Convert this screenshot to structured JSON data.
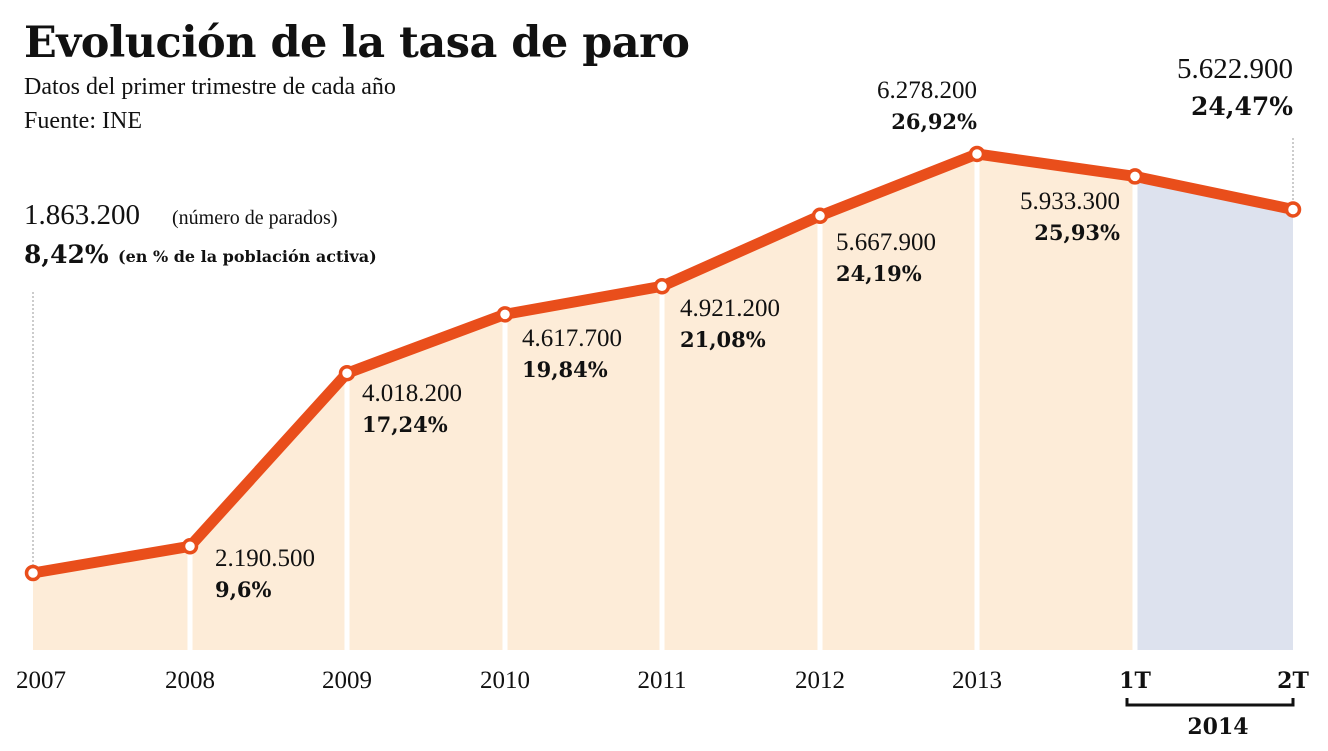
{
  "title": "Evolución de la tasa de paro",
  "subtitle": "Datos del primer trimestre de cada año",
  "source": "Fuente: INE",
  "chart_data": {
    "type": "area",
    "title": "Evolución de la tasa de paro",
    "categories": [
      "2007",
      "2008",
      "2009",
      "2010",
      "2011",
      "2012",
      "2013",
      "1T",
      "2T"
    ],
    "group_label": "2014",
    "group_categories": [
      "1T",
      "2T"
    ],
    "series": [
      {
        "values": [
          8.42,
          9.6,
          17.24,
          19.84,
          21.08,
          24.19,
          26.92,
          25.93,
          24.47
        ],
        "labels": [
          "8,42%",
          "9,6%",
          "17,24%",
          "19,84%",
          "21,08%",
          "24,19%",
          "26,92%",
          "25,93%",
          "24,47%"
        ]
      },
      {
        "values": [
          1863200,
          2190500,
          4018200,
          4617700,
          4921200,
          5667900,
          6278200,
          5933300,
          5622900
        ],
        "labels": [
          "1.863.200",
          "2.190.500",
          "4.018.200",
          "4.617.700",
          "4.921.200",
          "5.667.900",
          "6.278.200",
          "5.933.300",
          "5.622.900"
        ]
      }
    ],
    "first_point_notes": {
      "count_note": "(número de parados)",
      "pct_note": "(en % de la población activa)"
    },
    "ylim": [
      5,
      28
    ],
    "grid": false,
    "colors": {
      "line": "#e94e1b",
      "fill": "#fdecd8",
      "fill_2014": "#dde2ee"
    }
  }
}
